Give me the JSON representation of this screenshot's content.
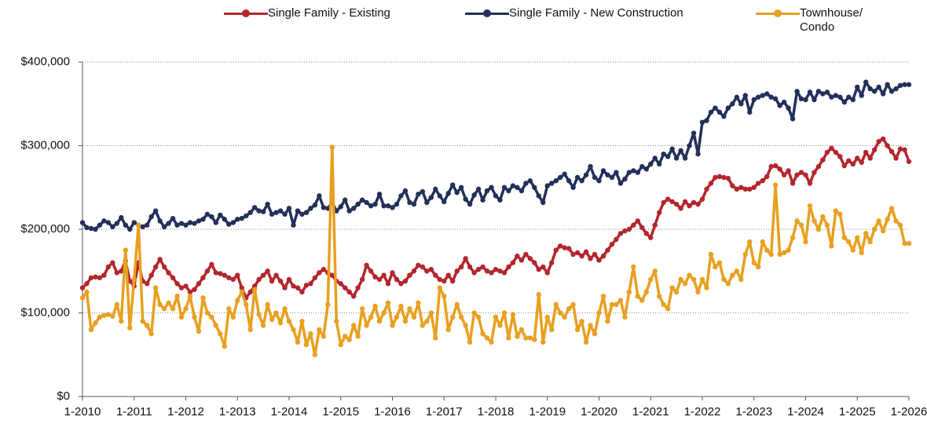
{
  "chart_data": {
    "type": "line",
    "categories": [
      "1-2010",
      null,
      null,
      null,
      null,
      null,
      null,
      null,
      null,
      null,
      null,
      null,
      "1-2011",
      null,
      null,
      null,
      null,
      null,
      null,
      null,
      null,
      null,
      null,
      null,
      "1-2012",
      null,
      null,
      null,
      null,
      null,
      null,
      null,
      null,
      null,
      null,
      null,
      "1-2013",
      null,
      null,
      null,
      null,
      null,
      null,
      null,
      null,
      null,
      null,
      null,
      "1-2014",
      null,
      null,
      null,
      null,
      null,
      null,
      null,
      null,
      null,
      null,
      null,
      "1-2015",
      null,
      null,
      null,
      null,
      null,
      null,
      null,
      null,
      null,
      null,
      null,
      "1-2016",
      null,
      null,
      null,
      null,
      null,
      null,
      null,
      null,
      null,
      null,
      null,
      "1-2017",
      null,
      null,
      null,
      null,
      null,
      null,
      null,
      null,
      null,
      null,
      null,
      "1-2018",
      null,
      null,
      null,
      null,
      null,
      null,
      null,
      null,
      null,
      null,
      null,
      "1-2019",
      null,
      null,
      null,
      null,
      null,
      null,
      null,
      null,
      null,
      null,
      null,
      "1-2020",
      null,
      null,
      null,
      null,
      null,
      null,
      null,
      null,
      null,
      null,
      null,
      "1-2021",
      null,
      null,
      null,
      null,
      null,
      null,
      null,
      null,
      null,
      null,
      null,
      "1-2022",
      null,
      null,
      null,
      null,
      null,
      null,
      null,
      null,
      null,
      null,
      null,
      "1-2023",
      null,
      null,
      null,
      null,
      null,
      null,
      null,
      null,
      null,
      null,
      null,
      "1-2024",
      null,
      null,
      null,
      null,
      null,
      null,
      null,
      null,
      null,
      null,
      null,
      "1-2025",
      null,
      null,
      null,
      null,
      null,
      null,
      null,
      null,
      null,
      null,
      null,
      "1-2026"
    ],
    "series": [
      {
        "name": "Single Family - Existing",
        "color": "#b3262d",
        "values": [
          130000,
          135000,
          142000,
          143000,
          142000,
          145000,
          155000,
          160000,
          148000,
          150000,
          162000,
          138000,
          132000,
          160000,
          138000,
          135000,
          145000,
          155000,
          164000,
          155000,
          148000,
          142000,
          135000,
          130000,
          132000,
          125000,
          128000,
          135000,
          142000,
          150000,
          158000,
          148000,
          147000,
          145000,
          142000,
          140000,
          145000,
          130000,
          118000,
          125000,
          132000,
          140000,
          145000,
          150000,
          138000,
          145000,
          138000,
          130000,
          140000,
          132000,
          130000,
          125000,
          133000,
          135000,
          142000,
          148000,
          152000,
          148000,
          145000,
          138000,
          135000,
          130000,
          125000,
          120000,
          130000,
          140000,
          157000,
          150000,
          143000,
          140000,
          145000,
          135000,
          148000,
          140000,
          135000,
          138000,
          145000,
          150000,
          157000,
          155000,
          150000,
          152000,
          145000,
          140000,
          138000,
          145000,
          138000,
          150000,
          155000,
          165000,
          155000,
          148000,
          152000,
          155000,
          150000,
          148000,
          152000,
          150000,
          148000,
          155000,
          160000,
          168000,
          163000,
          170000,
          165000,
          160000,
          152000,
          155000,
          148000,
          160000,
          175000,
          180000,
          178000,
          177000,
          170000,
          172000,
          168000,
          173000,
          165000,
          170000,
          163000,
          168000,
          175000,
          182000,
          188000,
          195000,
          198000,
          200000,
          205000,
          210000,
          202000,
          195000,
          190000,
          205000,
          220000,
          232000,
          236000,
          233000,
          230000,
          225000,
          233000,
          228000,
          232000,
          230000,
          236000,
          248000,
          255000,
          262000,
          263000,
          262000,
          261000,
          252000,
          248000,
          250000,
          248000,
          248000,
          250000,
          255000,
          258000,
          263000,
          275000,
          276000,
          272000,
          265000,
          270000,
          255000,
          265000,
          268000,
          265000,
          255000,
          268000,
          275000,
          283000,
          292000,
          297000,
          292000,
          287000,
          276000,
          282000,
          278000,
          285000,
          280000,
          292000,
          285000,
          295000,
          305000,
          308000,
          300000,
          293000,
          285000,
          296000,
          295000,
          281000
        ]
      },
      {
        "name": "Single Family - New Construction",
        "color": "#22305a",
        "values": [
          208000,
          202000,
          201000,
          200000,
          205000,
          210000,
          208000,
          203000,
          207000,
          214000,
          205000,
          200000,
          208000,
          205000,
          203000,
          205000,
          215000,
          222000,
          210000,
          203000,
          207000,
          213000,
          205000,
          207000,
          205000,
          208000,
          207000,
          210000,
          212000,
          218000,
          215000,
          208000,
          217000,
          212000,
          206000,
          208000,
          212000,
          213000,
          216000,
          220000,
          226000,
          222000,
          221000,
          230000,
          218000,
          220000,
          222000,
          218000,
          225000,
          205000,
          222000,
          218000,
          220000,
          225000,
          229000,
          240000,
          226000,
          225000,
          232000,
          222000,
          227000,
          235000,
          222000,
          225000,
          230000,
          235000,
          232000,
          228000,
          230000,
          242000,
          228000,
          228000,
          226000,
          230000,
          240000,
          246000,
          232000,
          230000,
          242000,
          245000,
          232000,
          238000,
          248000,
          240000,
          233000,
          243000,
          253000,
          244000,
          250000,
          236000,
          230000,
          241000,
          248000,
          235000,
          246000,
          250000,
          240000,
          235000,
          250000,
          246000,
          252000,
          250000,
          246000,
          255000,
          258000,
          250000,
          240000,
          232000,
          252000,
          255000,
          258000,
          262000,
          266000,
          258000,
          250000,
          262000,
          258000,
          265000,
          275000,
          262000,
          258000,
          270000,
          265000,
          262000,
          268000,
          255000,
          260000,
          268000,
          270000,
          268000,
          275000,
          272000,
          278000,
          285000,
          278000,
          290000,
          287000,
          296000,
          285000,
          294000,
          285000,
          300000,
          315000,
          290000,
          328000,
          330000,
          340000,
          345000,
          340000,
          335000,
          345000,
          350000,
          358000,
          350000,
          360000,
          340000,
          355000,
          358000,
          360000,
          362000,
          358000,
          356000,
          348000,
          352000,
          345000,
          332000,
          365000,
          356000,
          355000,
          364000,
          355000,
          365000,
          362000,
          364000,
          358000,
          360000,
          358000,
          352000,
          358000,
          355000,
          370000,
          360000,
          376000,
          368000,
          365000,
          370000,
          362000,
          373000,
          365000,
          368000,
          372000,
          373000,
          373000
        ]
      },
      {
        "name": "Townhouse/ Condo",
        "color": "#e8a020",
        "values": [
          118000,
          125000,
          80000,
          88000,
          95000,
          97000,
          98000,
          96000,
          110000,
          90000,
          175000,
          82000,
          140000,
          205000,
          90000,
          85000,
          75000,
          130000,
          110000,
          105000,
          112000,
          105000,
          120000,
          95000,
          105000,
          120000,
          95000,
          78000,
          118000,
          100000,
          95000,
          85000,
          75000,
          60000,
          105000,
          95000,
          115000,
          125000,
          110000,
          80000,
          128000,
          98000,
          85000,
          110000,
          92000,
          100000,
          88000,
          105000,
          90000,
          80000,
          65000,
          90000,
          62000,
          75000,
          50000,
          80000,
          72000,
          110000,
          298000,
          90000,
          62000,
          72000,
          68000,
          85000,
          72000,
          105000,
          85000,
          95000,
          108000,
          90000,
          100000,
          112000,
          85000,
          95000,
          108000,
          90000,
          105000,
          95000,
          112000,
          85000,
          90000,
          100000,
          70000,
          130000,
          120000,
          80000,
          95000,
          110000,
          95000,
          85000,
          65000,
          100000,
          95000,
          75000,
          70000,
          65000,
          95000,
          85000,
          100000,
          70000,
          98000,
          72000,
          80000,
          70000,
          70000,
          68000,
          122000,
          65000,
          95000,
          80000,
          110000,
          100000,
          95000,
          105000,
          110000,
          80000,
          90000,
          65000,
          85000,
          75000,
          100000,
          120000,
          90000,
          110000,
          110000,
          115000,
          95000,
          125000,
          155000,
          120000,
          115000,
          125000,
          140000,
          150000,
          120000,
          110000,
          105000,
          130000,
          125000,
          140000,
          135000,
          145000,
          140000,
          125000,
          140000,
          130000,
          170000,
          155000,
          160000,
          140000,
          135000,
          145000,
          150000,
          140000,
          170000,
          185000,
          160000,
          155000,
          185000,
          175000,
          170000,
          253000,
          170000,
          172000,
          175000,
          190000,
          210000,
          205000,
          185000,
          228000,
          210000,
          200000,
          215000,
          205000,
          180000,
          222000,
          218000,
          190000,
          185000,
          175000,
          190000,
          172000,
          195000,
          185000,
          200000,
          210000,
          198000,
          212000,
          225000,
          210000,
          205000,
          183000,
          183000
        ]
      }
    ],
    "ylim": [
      0,
      400000
    ],
    "yticks": [
      {
        "value": 0,
        "label": "$0"
      },
      {
        "value": 100000,
        "label": "$100,000"
      },
      {
        "value": 200000,
        "label": "$200,000"
      },
      {
        "value": 300000,
        "label": "$300,000"
      },
      {
        "value": 400000,
        "label": "$400,000"
      }
    ],
    "grid": true,
    "legend": "top"
  }
}
